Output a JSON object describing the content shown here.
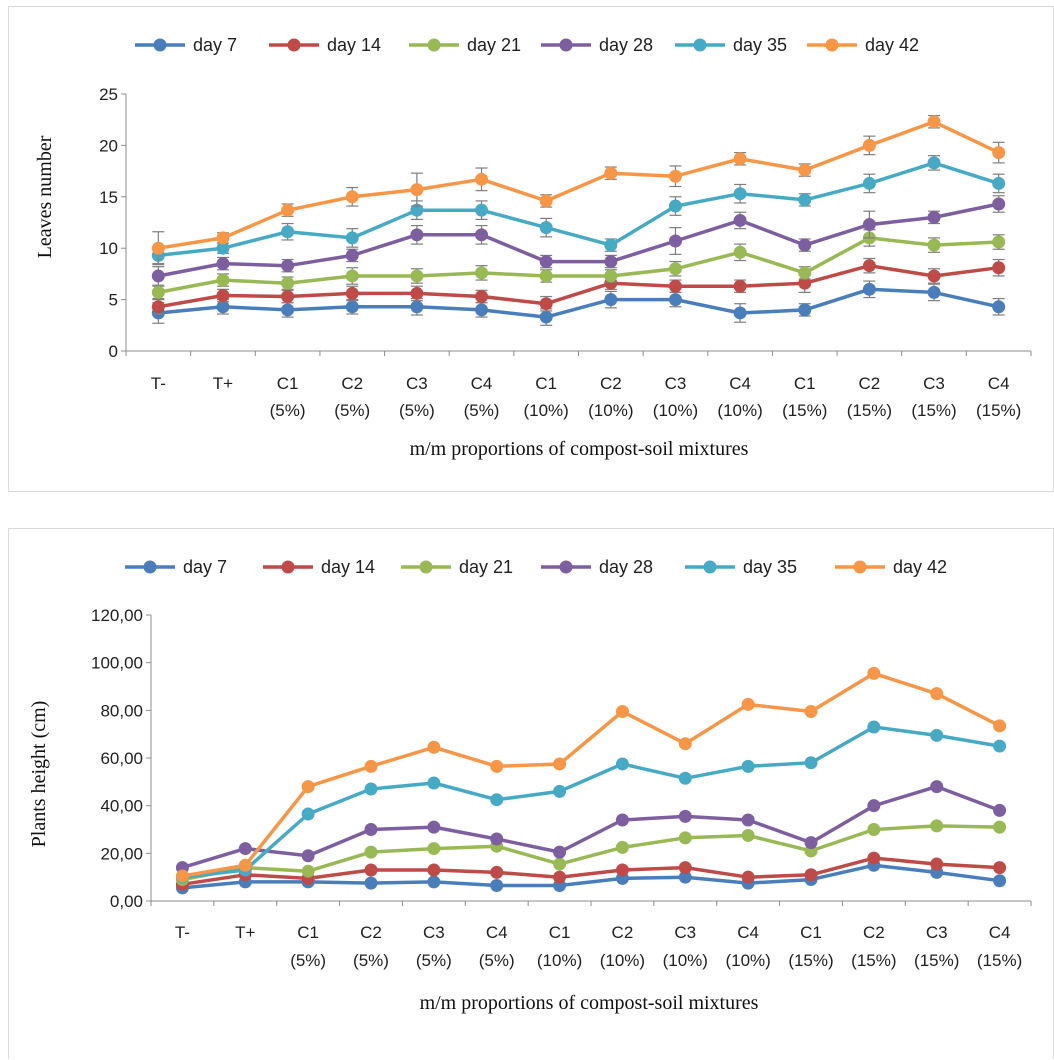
{
  "chart_data": [
    {
      "type": "line",
      "title": "",
      "xlabel": "m/m proportions of compost-soil mixtures",
      "ylabel": "Leaves number",
      "ylim": [
        0,
        25
      ],
      "yticks": [
        "0",
        "5",
        "10",
        "15",
        "20",
        "25"
      ],
      "grid": false,
      "legend": "top",
      "categories": [
        [
          "T-",
          ""
        ],
        [
          "T+",
          ""
        ],
        [
          "C1",
          "(5%)"
        ],
        [
          "C2",
          "(5%)"
        ],
        [
          "C3",
          "(5%)"
        ],
        [
          "C4",
          "(5%)"
        ],
        [
          "C1",
          "(10%)"
        ],
        [
          "C2",
          "(10%)"
        ],
        [
          "C3",
          "(10%)"
        ],
        [
          "C4",
          "(10%)"
        ],
        [
          "C1",
          "(15%)"
        ],
        [
          "C2",
          "(15%)"
        ],
        [
          "C3",
          "(15%)"
        ],
        [
          "C4",
          "(15%)"
        ]
      ],
      "series": [
        {
          "name": "day 7",
          "color": "#4a7ebb",
          "values": [
            3.7,
            4.3,
            4.0,
            4.3,
            4.3,
            4.0,
            3.3,
            5.0,
            5.0,
            3.7,
            4.0,
            6.0,
            5.7,
            4.3
          ],
          "errors": [
            1.0,
            0.7,
            0.7,
            0.7,
            0.8,
            0.7,
            0.8,
            0.8,
            0.7,
            0.9,
            0.6,
            0.8,
            0.8,
            0.8
          ]
        },
        {
          "name": "day 14",
          "color": "#be4b48",
          "values": [
            4.3,
            5.4,
            5.3,
            5.6,
            5.6,
            5.3,
            4.6,
            6.6,
            6.3,
            6.3,
            6.6,
            8.3,
            7.3,
            8.1
          ],
          "errors": [
            0.7,
            0.6,
            0.6,
            0.7,
            0.7,
            0.6,
            0.7,
            0.6,
            0.6,
            0.6,
            0.9,
            0.7,
            0.7,
            0.8
          ]
        },
        {
          "name": "day 21",
          "color": "#98b954",
          "values": [
            5.7,
            6.9,
            6.6,
            7.3,
            7.3,
            7.6,
            7.3,
            7.3,
            8.0,
            9.6,
            7.6,
            11.0,
            10.3,
            10.6
          ],
          "errors": [
            0.6,
            0.6,
            0.6,
            0.8,
            0.7,
            0.7,
            0.6,
            0.6,
            0.7,
            0.8,
            0.6,
            0.8,
            0.7,
            0.7
          ]
        },
        {
          "name": "day 28",
          "color": "#7d5fa0",
          "values": [
            7.3,
            8.5,
            8.3,
            9.3,
            11.3,
            11.3,
            8.7,
            8.7,
            10.7,
            12.7,
            10.3,
            12.3,
            13.0,
            14.3
          ],
          "errors": [
            0.9,
            0.6,
            0.6,
            0.6,
            0.9,
            0.9,
            0.6,
            0.6,
            1.3,
            0.8,
            0.6,
            1.3,
            0.6,
            0.8
          ]
        },
        {
          "name": "day 35",
          "color": "#46aac5",
          "values": [
            9.3,
            10.0,
            11.6,
            11.0,
            13.7,
            13.7,
            12.0,
            10.3,
            14.1,
            15.3,
            14.7,
            16.3,
            18.3,
            16.3
          ],
          "errors": [
            0.8,
            0.5,
            0.8,
            0.9,
            0.9,
            0.9,
            0.9,
            0.6,
            0.9,
            0.9,
            0.6,
            0.9,
            0.7,
            0.9
          ]
        },
        {
          "name": "day 42",
          "color": "#f79646",
          "values": [
            10.0,
            11.0,
            13.7,
            15.0,
            15.7,
            16.7,
            14.6,
            17.3,
            17.0,
            18.7,
            17.6,
            20.0,
            22.3,
            19.3
          ],
          "errors": [
            1.6,
            0.5,
            0.6,
            0.9,
            1.6,
            1.1,
            0.6,
            0.6,
            1.0,
            0.6,
            0.6,
            0.9,
            0.6,
            1.0
          ]
        }
      ]
    },
    {
      "type": "line",
      "title": "",
      "xlabel": "m/m proportions of compost-soil mixtures",
      "ylabel": "Plants height (cm)",
      "ylim": [
        0,
        120
      ],
      "yticks": [
        "0,00",
        "20,00",
        "40,00",
        "60,00",
        "80,00",
        "100,00",
        "120,00"
      ],
      "grid": false,
      "legend": "top",
      "categories": [
        [
          "T-",
          ""
        ],
        [
          "T+",
          ""
        ],
        [
          "C1",
          "(5%)"
        ],
        [
          "C2",
          "(5%)"
        ],
        [
          "C3",
          "(5%)"
        ],
        [
          "C4",
          "(5%)"
        ],
        [
          "C1",
          "(10%)"
        ],
        [
          "C2",
          "(10%)"
        ],
        [
          "C3",
          "(10%)"
        ],
        [
          "C4",
          "(10%)"
        ],
        [
          "C1",
          "(15%)"
        ],
        [
          "C2",
          "(15%)"
        ],
        [
          "C3",
          "(15%)"
        ],
        [
          "C4",
          "(15%)"
        ]
      ],
      "series": [
        {
          "name": "day 7",
          "color": "#4a7ebb",
          "values": [
            5.5,
            8.0,
            8.0,
            7.5,
            8.0,
            6.5,
            6.5,
            9.5,
            10.0,
            7.5,
            9.0,
            15.0,
            12.0,
            8.5
          ]
        },
        {
          "name": "day 14",
          "color": "#be4b48",
          "values": [
            7.0,
            11.0,
            9.5,
            13.0,
            13.0,
            12.0,
            10.0,
            13.0,
            14.0,
            10.0,
            11.0,
            18.0,
            15.5,
            14.0
          ]
        },
        {
          "name": "day 21",
          "color": "#98b954",
          "values": [
            9.0,
            14.0,
            12.5,
            20.5,
            22.0,
            23.0,
            15.5,
            22.5,
            26.5,
            27.5,
            21.0,
            30.0,
            31.5,
            31.0
          ]
        },
        {
          "name": "day  28",
          "color": "#7d5fa0",
          "values": [
            14.0,
            22.0,
            19.0,
            30.0,
            31.0,
            26.0,
            20.5,
            34.0,
            35.5,
            34.0,
            24.5,
            40.0,
            48.0,
            38.0
          ]
        },
        {
          "name": "day  35",
          "color": "#46aac5",
          "values": [
            10.0,
            13.0,
            36.5,
            47.0,
            49.5,
            42.5,
            46.0,
            57.5,
            51.5,
            56.5,
            58.0,
            73.0,
            69.5,
            65.0
          ]
        },
        {
          "name": "day 42",
          "color": "#f79646",
          "values": [
            10.5,
            15.0,
            48.0,
            56.5,
            64.5,
            56.5,
            57.5,
            79.5,
            66.0,
            82.5,
            79.5,
            95.5,
            87.0,
            73.5
          ]
        }
      ]
    }
  ]
}
